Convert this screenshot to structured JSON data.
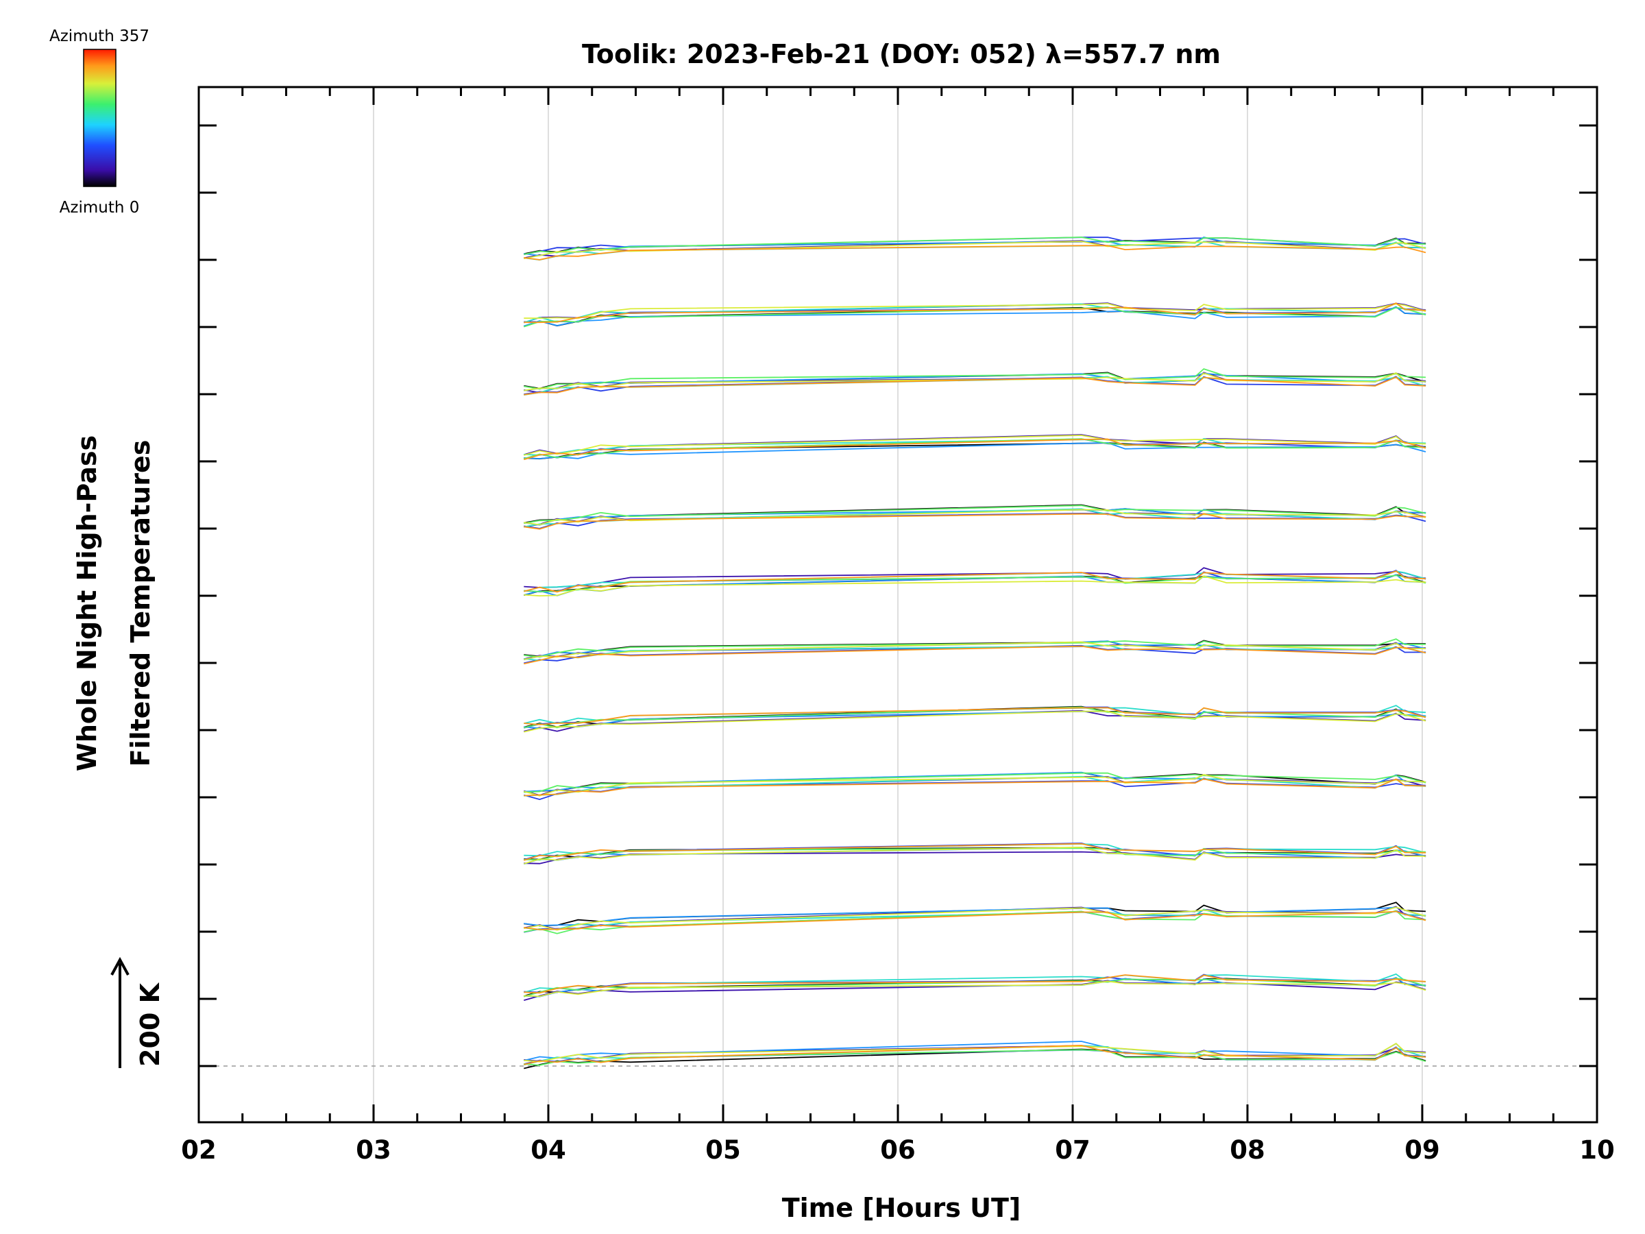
{
  "chart_data": {
    "type": "line",
    "title": "Toolik: 2023-Feb-21 (DOY: 052) λ=557.7 nm",
    "xlabel": "Time [Hours UT]",
    "ylabel_line1": "Whole Night High-Pass",
    "ylabel_line2": "Filtered Temperatures",
    "scale_label": "200 K",
    "xlim": [
      2,
      10
    ],
    "x_ticks": [
      "02",
      "03",
      "04",
      "05",
      "06",
      "07",
      "08",
      "09",
      "10"
    ],
    "grid": "vertical",
    "colorbar": {
      "top_label": "Azimuth 357",
      "bottom_label": "Azimuth 0",
      "colormap": "rainbow (black-purple-blue-cyan-green-yellow-red)",
      "azimuth_range": [
        0,
        357
      ]
    },
    "stack_offset_k": 200,
    "n_stacked_groups": 13,
    "series_per_group": 8,
    "series_azimuths": [
      0,
      45,
      90,
      135,
      180,
      225,
      270,
      315
    ],
    "time_points": [
      3.86,
      3.95,
      4.05,
      4.17,
      4.3,
      4.47,
      7.05,
      7.2,
      7.3,
      7.7,
      7.75,
      7.88,
      8.73,
      8.85,
      8.9,
      9.02
    ],
    "group_profiles": [
      [
        0,
        5,
        10,
        14,
        12,
        18,
        50,
        40,
        30,
        24,
        26,
        20,
        15,
        45,
        30,
        20
      ],
      [
        0,
        7,
        14,
        16,
        20,
        24,
        40,
        45,
        47,
        39,
        49,
        44,
        33,
        49,
        39,
        29
      ],
      [
        0,
        3,
        -2,
        8,
        12,
        16,
        54,
        48,
        34,
        41,
        53,
        40,
        45,
        58,
        43,
        34
      ],
      [
        0,
        8,
        14,
        17,
        21,
        26,
        42,
        33,
        26,
        16,
        31,
        26,
        18,
        36,
        27,
        20
      ],
      [
        0,
        -4,
        7,
        10,
        16,
        24,
        50,
        44,
        36,
        42,
        48,
        42,
        24,
        44,
        34,
        26
      ],
      [
        0,
        5,
        3,
        12,
        14,
        22,
        54,
        48,
        42,
        30,
        44,
        38,
        32,
        48,
        40,
        30
      ],
      [
        0,
        4,
        10,
        15,
        19,
        23,
        45,
        42,
        38,
        34,
        40,
        35,
        29,
        43,
        36,
        30
      ],
      [
        0,
        6,
        1,
        14,
        17,
        26,
        49,
        40,
        33,
        40,
        54,
        43,
        39,
        55,
        44,
        35
      ],
      [
        0,
        2,
        12,
        13,
        22,
        20,
        46,
        39,
        37,
        28,
        37,
        31,
        23,
        42,
        34,
        27
      ],
      [
        0,
        7,
        6,
        10,
        20,
        25,
        52,
        47,
        38,
        36,
        45,
        39,
        34,
        50,
        39,
        31
      ],
      [
        0,
        1,
        9,
        18,
        15,
        22,
        43,
        41,
        31,
        33,
        50,
        37,
        27,
        47,
        33,
        24
      ],
      [
        0,
        9,
        4,
        11,
        23,
        27,
        48,
        45,
        40,
        27,
        39,
        33,
        30,
        52,
        42,
        33
      ],
      [
        0,
        3,
        8,
        16,
        18,
        21,
        44,
        38,
        35,
        38,
        47,
        41,
        26,
        41,
        35,
        28
      ]
    ]
  }
}
